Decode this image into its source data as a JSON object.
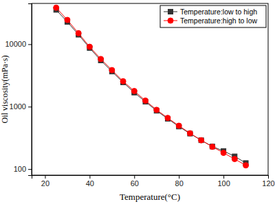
{
  "chart_data": {
    "type": "line",
    "x_label": "Temperature(°C)",
    "y_label": "Oil viscosity(mPa·s)",
    "x": [
      25,
      30,
      35,
      40,
      45,
      50,
      55,
      60,
      65,
      70,
      75,
      80,
      85,
      90,
      95,
      100,
      105,
      110
    ],
    "series": [
      {
        "name": "Temperature:low to high",
        "color": "#333333",
        "marker": "square",
        "line_style": "solid",
        "values": [
          35500,
          22800,
          14200,
          8700,
          5500,
          3650,
          2450,
          1680,
          1200,
          860,
          640,
          480,
          370,
          290,
          230,
          195,
          160,
          125
        ]
      },
      {
        "name": "Temperature:high to low",
        "color": "#ff0000",
        "marker": "circle",
        "line_style": "solid",
        "values": [
          38500,
          24500,
          15000,
          9100,
          5800,
          3850,
          2550,
          1780,
          1250,
          890,
          660,
          495,
          375,
          290,
          228,
          182,
          145,
          115
        ]
      }
    ],
    "xlim": [
      14,
      120
    ],
    "xticks": [
      20,
      40,
      60,
      80,
      100,
      120
    ],
    "ylim": [
      80,
      45000
    ],
    "yticks": [
      100,
      1000,
      10000
    ],
    "log": "y",
    "grid": false,
    "legend": "upper right"
  }
}
